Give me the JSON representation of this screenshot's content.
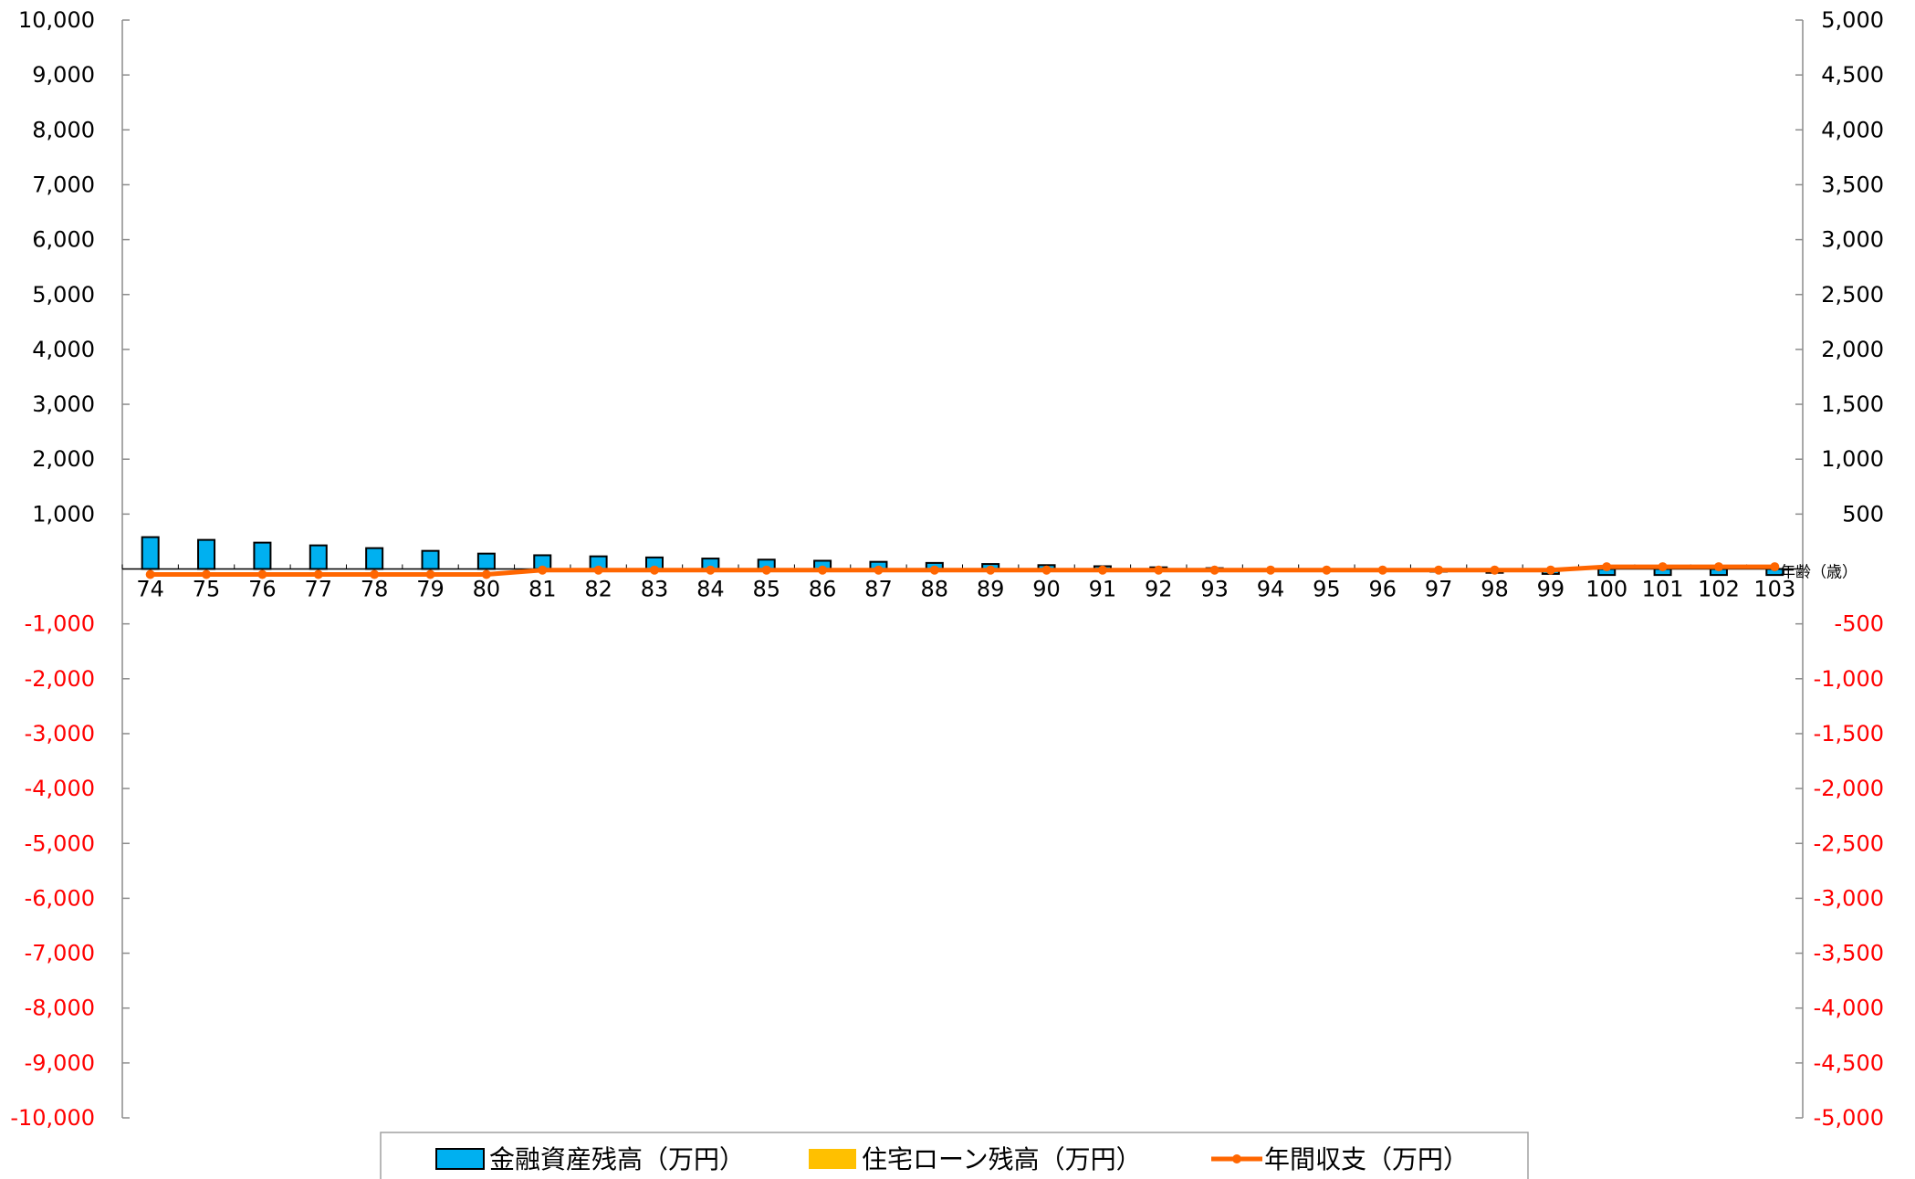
{
  "chart_data": {
    "type": "bar",
    "x_unit_label": "年齢（歳）",
    "categories": [
      "74",
      "75",
      "76",
      "77",
      "78",
      "79",
      "80",
      "81",
      "82",
      "83",
      "84",
      "85",
      "86",
      "87",
      "88",
      "89",
      "90",
      "91",
      "92",
      "93",
      "94",
      "95",
      "96",
      "97",
      "98",
      "99",
      "100",
      "101",
      "102",
      "103"
    ],
    "left_axis": {
      "ylim": [
        -10000,
        10000
      ],
      "ticks": [
        10000,
        9000,
        8000,
        7000,
        6000,
        5000,
        4000,
        3000,
        2000,
        1000,
        -1000,
        -2000,
        -3000,
        -4000,
        -5000,
        -6000,
        -7000,
        -8000,
        -9000,
        -10000
      ],
      "tick_labels": [
        "10,000",
        "9,000",
        "8,000",
        "7,000",
        "6,000",
        "5,000",
        "4,000",
        "3,000",
        "2,000",
        "1,000",
        "-1,000",
        "-2,000",
        "-3,000",
        "-4,000",
        "-5,000",
        "-6,000",
        "-7,000",
        "-8,000",
        "-9,000",
        "-10,000"
      ]
    },
    "right_axis": {
      "ylim": [
        -5000,
        5000
      ],
      "ticks": [
        5000,
        4500,
        4000,
        3500,
        3000,
        2500,
        2000,
        1500,
        1000,
        500,
        -500,
        -1000,
        -1500,
        -2000,
        -2500,
        -3000,
        -3500,
        -4000,
        -4500,
        -5000
      ],
      "tick_labels": [
        "5,000",
        "4,500",
        "4,000",
        "3,500",
        "3,000",
        "2,500",
        "2,000",
        "1,500",
        "1,000",
        "500",
        "-500",
        "-1,000",
        "-1,500",
        "-2,000",
        "-2,500",
        "-3,000",
        "-3,500",
        "-4,000",
        "-4,500",
        "-5,000"
      ]
    },
    "positive_label_color": "#000000",
    "negative_label_color": "#ff0000",
    "grid": false,
    "legend_position": "bottom",
    "series": [
      {
        "name": "金融資産残高（万円）",
        "kind": "bar",
        "axis": "left",
        "color": "#00b0f0",
        "values": [
          580,
          530,
          480,
          430,
          380,
          330,
          280,
          250,
          230,
          210,
          190,
          170,
          150,
          130,
          110,
          90,
          70,
          50,
          30,
          15,
          0,
          -15,
          -30,
          -50,
          -70,
          -90,
          -110,
          -110,
          -110,
          -110
        ]
      },
      {
        "name": "住宅ローン残高（万円）",
        "kind": "bar",
        "axis": "left",
        "color": "#ffc000",
        "values": [
          0,
          0,
          0,
          0,
          0,
          0,
          0,
          0,
          0,
          0,
          0,
          0,
          0,
          0,
          0,
          0,
          0,
          0,
          0,
          0,
          0,
          0,
          0,
          0,
          0,
          0,
          0,
          0,
          0,
          0
        ]
      },
      {
        "name": "年間収支（万円）",
        "kind": "line",
        "axis": "right",
        "color": "#ff6600",
        "values": [
          -50,
          -50,
          -50,
          -50,
          -50,
          -50,
          -50,
          -10,
          -10,
          -10,
          -10,
          -10,
          -10,
          -10,
          -10,
          -10,
          -10,
          -10,
          -10,
          -10,
          -10,
          -10,
          -10,
          -10,
          -10,
          -10,
          20,
          20,
          20,
          20
        ]
      }
    ]
  }
}
